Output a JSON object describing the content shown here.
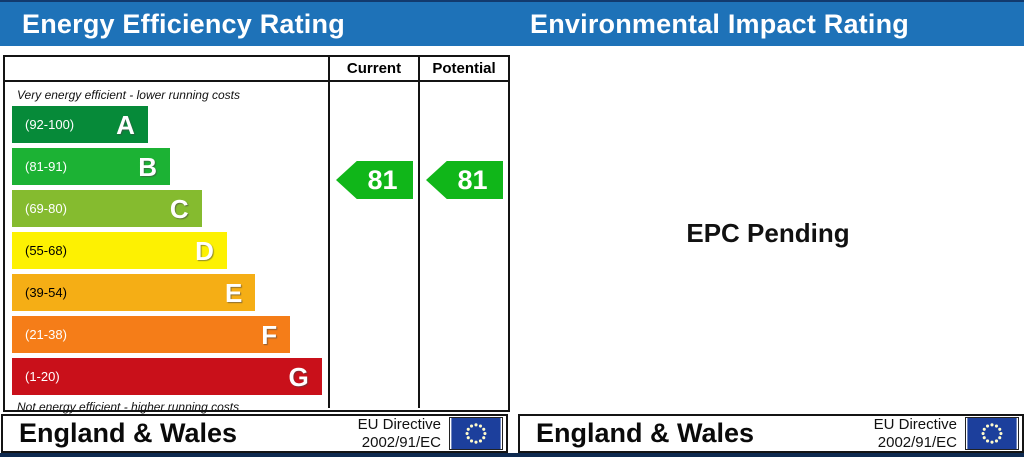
{
  "chart_data": {
    "type": "bar",
    "title": "Energy Efficiency Rating",
    "categories": [
      "A",
      "B",
      "C",
      "D",
      "E",
      "F",
      "G"
    ],
    "band_ranges": [
      "92-100",
      "81-91",
      "69-80",
      "55-68",
      "39-54",
      "21-38",
      "1-20"
    ],
    "bar_lengths_pct": [
      43,
      50,
      60,
      68,
      77,
      88,
      98
    ],
    "top_label": "Very energy efficient - lower running costs",
    "bottom_label": "Not energy efficient - higher running costs",
    "series": [
      {
        "name": "Current",
        "value": 81,
        "band": "B"
      },
      {
        "name": "Potential",
        "value": 81,
        "band": "B"
      }
    ],
    "second_panel": {
      "title": "Environmental Impact Rating",
      "status": "EPC Pending"
    }
  },
  "header": {
    "left_title": "Energy Efficiency Rating",
    "right_title": "Environmental Impact Rating",
    "bar_color": "#1e72b8"
  },
  "panels": {
    "left": {
      "columns": {
        "current": "Current",
        "potential": "Potential"
      },
      "top_note": "Very energy efficient - lower running costs",
      "bottom_note": "Not energy efficient - higher running costs",
      "bands": [
        {
          "letter": "A",
          "range": "(92-100)",
          "color": "#068a39",
          "label_color": "#ffffff",
          "width_pct": 43
        },
        {
          "letter": "B",
          "range": "(81-91)",
          "color": "#1cb234",
          "label_color": "#ffffff",
          "width_pct": 50
        },
        {
          "letter": "C",
          "range": "(69-80)",
          "color": "#85bb2f",
          "label_color": "#ffffff",
          "width_pct": 60
        },
        {
          "letter": "D",
          "range": "(55-68)",
          "color": "#fdf102",
          "label_color": "#000000",
          "width_pct": 68
        },
        {
          "letter": "E",
          "range": "(39-54)",
          "color": "#f5ae15",
          "label_color": "#000000",
          "width_pct": 77
        },
        {
          "letter": "F",
          "range": "(21-38)",
          "color": "#f57d18",
          "label_color": "#ffffff",
          "width_pct": 88
        },
        {
          "letter": "G",
          "range": "(1-20)",
          "color": "#c9101a",
          "label_color": "#ffffff",
          "width_pct": 98
        }
      ],
      "current": {
        "value": "81",
        "color": "#10b619"
      },
      "potential": {
        "value": "81",
        "color": "#10b619"
      }
    },
    "right": {
      "status_text": "EPC Pending"
    }
  },
  "footer": {
    "region": "England & Wales",
    "directive_line1": "EU Directive",
    "directive_line2": "2002/91/EC",
    "flag_icon": "eu-flag",
    "flag_color": "#1c3f9c",
    "star_color": "#fffbcc"
  }
}
